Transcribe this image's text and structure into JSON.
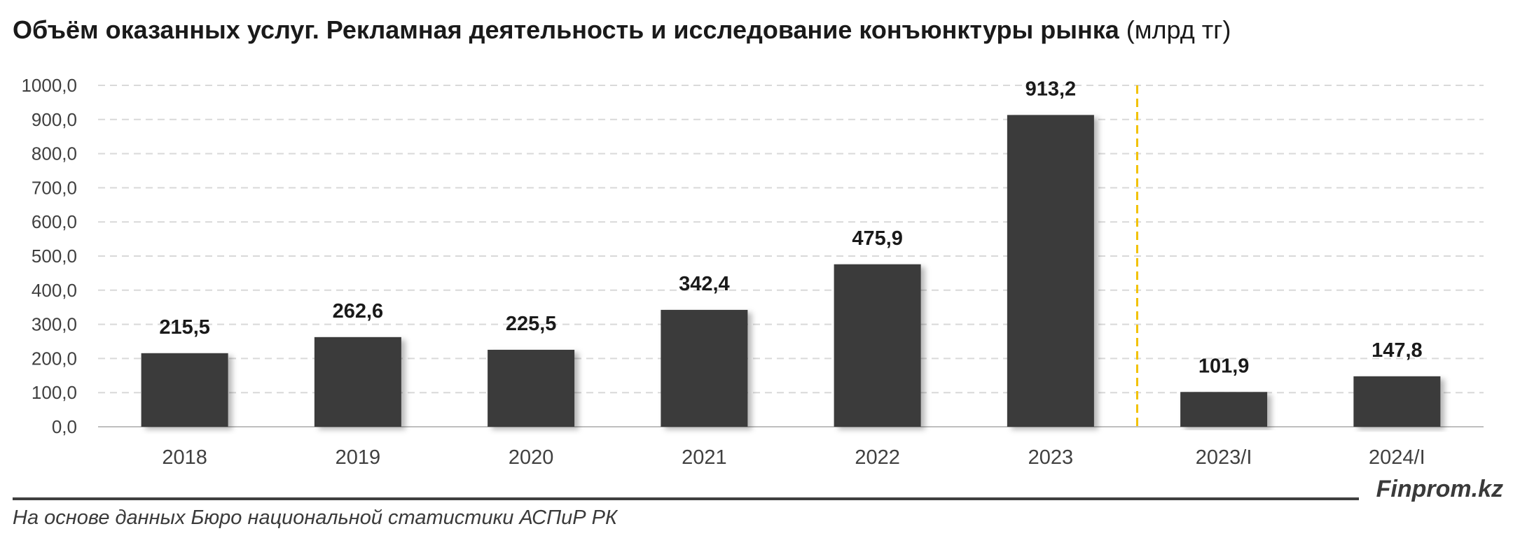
{
  "chart_data": {
    "type": "bar",
    "title": "Объём оказанных услуг. Рекламная деятельность и исследование конъюнктуры рынка",
    "unit": "(млрд тг)",
    "categories": [
      "2018",
      "2019",
      "2020",
      "2021",
      "2022",
      "2023",
      "2023/I",
      "2024/I"
    ],
    "values": [
      215.5,
      262.6,
      225.5,
      342.4,
      475.9,
      913.2,
      101.9,
      147.8
    ],
    "value_labels": [
      "215,5",
      "262,6",
      "225,5",
      "342,4",
      "475,9",
      "913,2",
      "101,9",
      "147,8"
    ],
    "ylim": [
      0,
      1000
    ],
    "yticks": [
      0,
      100,
      200,
      300,
      400,
      500,
      600,
      700,
      800,
      900,
      1000
    ],
    "ytick_labels": [
      "0,0",
      "100,0",
      "200,0",
      "300,0",
      "400,0",
      "500,0",
      "600,0",
      "700,0",
      "800,0",
      "900,0",
      "1000,0"
    ],
    "grid": true,
    "bar_color": "#3b3b3b",
    "grid_color": "#d9d9d9",
    "divider_color": "#f2c200",
    "divider_after_category": "2023"
  },
  "footer": {
    "brand": "Finprom.kz",
    "source": "На основе данных Бюро национальной статистики АСПиР РК"
  }
}
